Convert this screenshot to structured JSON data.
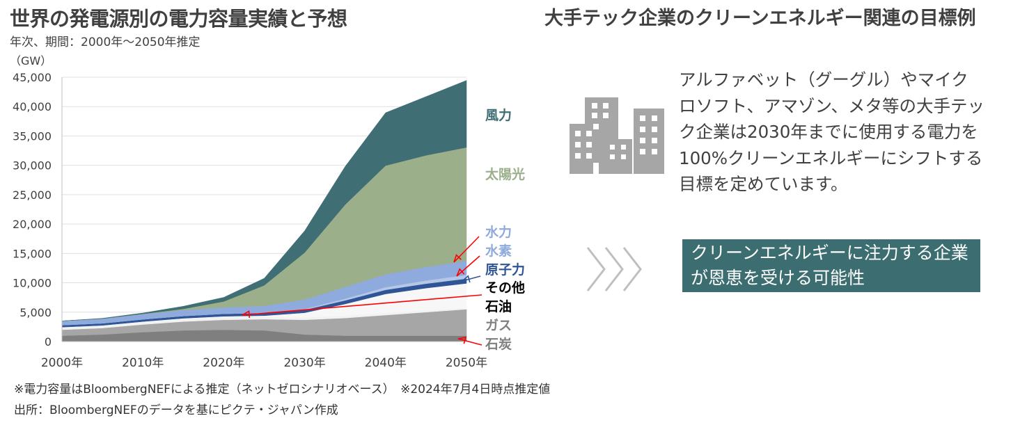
{
  "left_panel": {
    "title": "世界の発電源別の電力容量実績と予想",
    "subtitle": "年次、期間：2000年～2050年推定",
    "unit": "（GW）"
  },
  "chart_data": {
    "type": "area",
    "stacked": true,
    "x": [
      "2000年",
      "2005年",
      "2010年",
      "2015年",
      "2020年",
      "2025年",
      "2030年",
      "2035年",
      "2040年",
      "2045年",
      "2050年"
    ],
    "x_ticks": [
      "2000年",
      "2010年",
      "2020年",
      "2030年",
      "2040年",
      "2050年"
    ],
    "ylim": [
      0,
      45000
    ],
    "y_ticks": [
      "0",
      "5,000",
      "10,000",
      "15,000",
      "20,000",
      "25,000",
      "30,000",
      "35,000",
      "40,000",
      "45,000"
    ],
    "y_tick_values": [
      0,
      5000,
      10000,
      15000,
      20000,
      25000,
      30000,
      35000,
      40000,
      45000
    ],
    "grid": true,
    "series": [
      {
        "name": "石炭",
        "color": "#7f7f7f",
        "values": [
          1000,
          1200,
          1600,
          1900,
          2000,
          1900,
          1200,
          1000,
          1000,
          1000,
          1000
        ]
      },
      {
        "name": "ガス",
        "color": "#a6a6a6",
        "values": [
          1000,
          1100,
          1300,
          1500,
          1700,
          1900,
          2500,
          3000,
          3500,
          4000,
          4500
        ]
      },
      {
        "name": "石油",
        "color": "#f2f2f2",
        "values": [
          400,
          400,
          400,
          450,
          500,
          400,
          400,
          400,
          400,
          300,
          200
        ]
      },
      {
        "name": "その他",
        "color": "#f7f7f7",
        "values": [
          50,
          50,
          100,
          100,
          100,
          200,
          800,
          2000,
          3200,
          3800,
          4200
        ]
      },
      {
        "name": "原子力",
        "color": "#2f5597",
        "values": [
          350,
          350,
          380,
          400,
          420,
          450,
          500,
          600,
          700,
          750,
          800
        ]
      },
      {
        "name": "水素",
        "color": "#b4c7e7",
        "values": [
          0,
          0,
          0,
          0,
          0,
          20,
          150,
          300,
          450,
          550,
          650
        ]
      },
      {
        "name": "水力",
        "color": "#8faadc",
        "values": [
          700,
          800,
          900,
          1000,
          1100,
          1200,
          1600,
          2000,
          2200,
          2300,
          2400
        ]
      },
      {
        "name": "太陽光",
        "color": "#9caf8b",
        "values": [
          0,
          0,
          30,
          200,
          1000,
          3500,
          8000,
          14000,
          18500,
          19000,
          19300
        ]
      },
      {
        "name": "風力",
        "color": "#3f6e74",
        "values": [
          0,
          50,
          150,
          450,
          700,
          1200,
          3700,
          6500,
          9000,
          10000,
          11400
        ]
      }
    ],
    "legend_placement": "right",
    "label_colors": {
      "風力": "#3f6e74",
      "太陽光": "#9caf8b",
      "水力": "#8faadc",
      "水素": "#8faadc",
      "原子力": "#2f5597",
      "その他": "#000000",
      "石油": "#000000",
      "ガス": "#7f7f7f",
      "石炭": "#7f7f7f"
    }
  },
  "footnotes": {
    "line1": "※電力容量はBloombergNEFによる推定（ネットゼロシナリオベース）　※2024年7月4日時点推定値",
    "line2": "出所：BloombergNEFのデータを基にピクテ・ジャパン作成"
  },
  "right_panel": {
    "title": "大手テック企業のクリーンエネルギー関連の目標例",
    "body": "アルファベット（グーグル）やマイクロソフト、アマゾン、メタ等の大手テック企業は2030年までに使用する電力を100%クリーンエネルギーにシフトする目標を定めています。",
    "callout": "クリーンエネルギーに注力する企業が恩恵を受ける可能性",
    "icon": "buildings-icon",
    "arrow_icon": "chevrons-right-icon",
    "callout_color": "#3c6e71",
    "icon_color": "#a6a6a6"
  }
}
